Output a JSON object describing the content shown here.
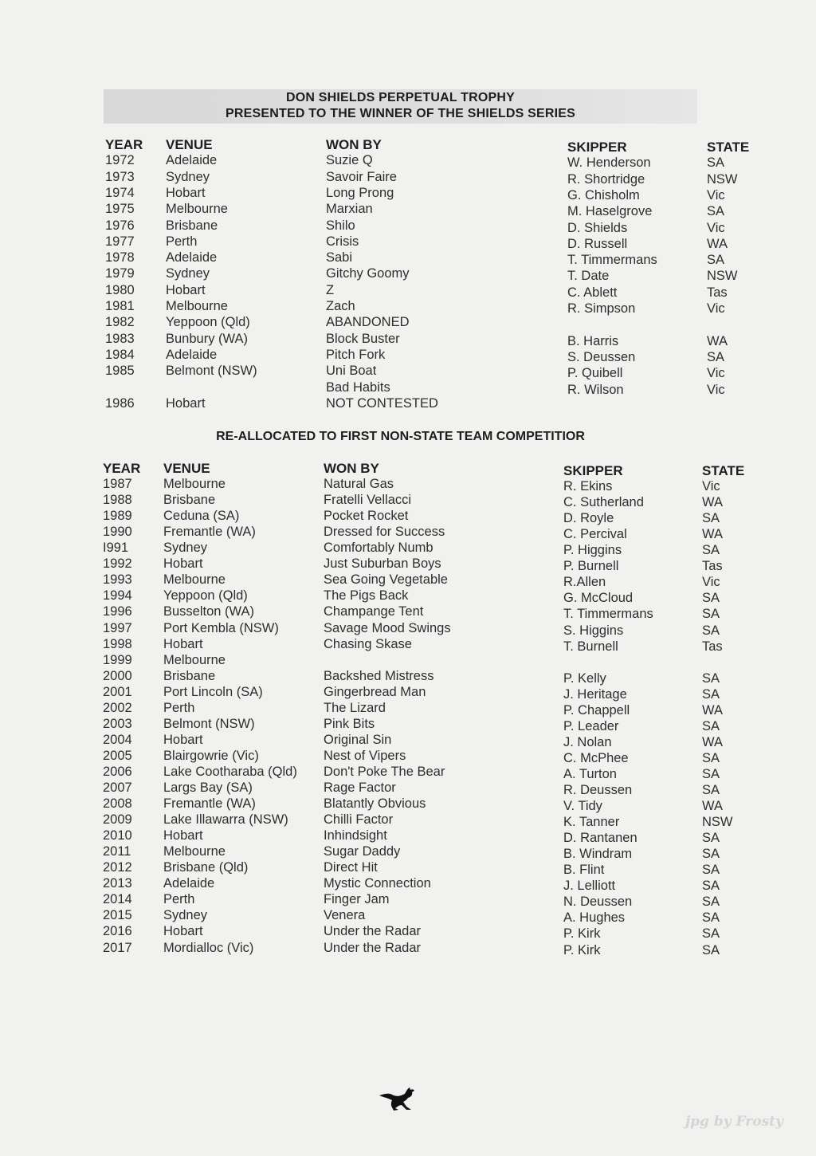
{
  "title_line1": "DON SHIELDS PERPETUAL TROPHY",
  "title_line2": "PRESENTED TO THE WINNER OF THE SHIELDS SERIES",
  "section2_title": "RE-ALLOCATED TO FIRST NON-STATE TEAM COMPETITIOR",
  "columns": [
    "YEAR",
    "VENUE",
    "WON BY",
    "SKIPPER",
    "STATE"
  ],
  "table1": [
    [
      "1972",
      "Adelaide",
      "Suzie Q",
      "W. Henderson",
      "SA"
    ],
    [
      "1973",
      "Sydney",
      "Savoir Faire",
      "R. Shortridge",
      "NSW"
    ],
    [
      "1974",
      "Hobart",
      "Long Prong",
      "G. Chisholm",
      "Vic"
    ],
    [
      "1975",
      "Melbourne",
      "Marxian",
      "M. Haselgrove",
      "SA"
    ],
    [
      "1976",
      "Brisbane",
      "Shilo",
      "D. Shields",
      "Vic"
    ],
    [
      "1977",
      "Perth",
      "Crisis",
      "D. Russell",
      "WA"
    ],
    [
      "1978",
      "Adelaide",
      "Sabi",
      "T. Timmermans",
      "SA"
    ],
    [
      "1979",
      "Sydney",
      "Gitchy Goomy",
      "T. Date",
      "NSW"
    ],
    [
      "1980",
      "Hobart",
      "Z",
      "C. Ablett",
      "Tas"
    ],
    [
      "1981",
      "Melbourne",
      "Zach",
      "R. Simpson",
      "Vic"
    ],
    [
      "1982",
      "Yeppoon (Qld)",
      "ABANDONED",
      "",
      ""
    ],
    [
      "1983",
      "Bunbury (WA)",
      "Block Buster",
      "B. Harris",
      "WA"
    ],
    [
      "1984",
      "Adelaide",
      "Pitch Fork",
      "S. Deussen",
      "SA"
    ],
    [
      "1985",
      "Belmont (NSW)",
      "Uni Boat",
      "P. Quibell",
      "Vic"
    ],
    [
      "",
      "",
      "Bad Habits",
      "R. Wilson",
      "Vic"
    ],
    [
      "1986",
      "Hobart",
      "NOT CONTESTED",
      "",
      ""
    ]
  ],
  "table2": [
    [
      "1987",
      "Melbourne",
      "Natural Gas",
      "R. Ekins",
      "Vic"
    ],
    [
      "1988",
      "Brisbane",
      "Fratelli Vellacci",
      "C. Sutherland",
      "WA"
    ],
    [
      "1989",
      "Ceduna (SA)",
      "Pocket Rocket",
      "D. Royle",
      "SA"
    ],
    [
      "1990",
      "Fremantle (WA)",
      "Dressed for Success",
      "C. Percival",
      "WA"
    ],
    [
      "I991",
      "Sydney",
      "Comfortably Numb",
      "P. Higgins",
      "SA"
    ],
    [
      "1992",
      "Hobart",
      "Just Suburban Boys",
      "P. Burnell",
      "Tas"
    ],
    [
      "1993",
      "Melbourne",
      "Sea Going Vegetable",
      "R.Allen",
      "Vic"
    ],
    [
      "1994",
      "Yeppoon (Qld)",
      "The Pigs Back",
      "G. McCloud",
      "SA"
    ],
    [
      "1996",
      "Busselton (WA)",
      "Champange Tent",
      "T. Timmermans",
      "SA"
    ],
    [
      "1997",
      "Port Kembla (NSW)",
      "Savage Mood Swings",
      "S. Higgins",
      "SA"
    ],
    [
      "1998",
      "Hobart",
      "Chasing Skase",
      "T. Burnell",
      "Tas"
    ],
    [
      "1999",
      "Melbourne",
      "",
      "",
      ""
    ],
    [
      "2000",
      "Brisbane",
      "Backshed Mistress",
      "P. Kelly",
      "SA"
    ],
    [
      "2001",
      "Port Lincoln (SA)",
      "Gingerbread Man",
      "J. Heritage",
      "SA"
    ],
    [
      "2002",
      "Perth",
      "The Lizard",
      "P. Chappell",
      "WA"
    ],
    [
      "2003",
      "Belmont (NSW)",
      "Pink Bits",
      "P. Leader",
      "SA"
    ],
    [
      "2004",
      "Hobart",
      "Original Sin",
      "J. Nolan",
      "WA"
    ],
    [
      "2005",
      "Blairgowrie (Vic)",
      "Nest of Vipers",
      "C. McPhee",
      "SA"
    ],
    [
      "2006",
      "Lake Cootharaba (Qld)",
      "Don't Poke The Bear",
      "A. Turton",
      "SA"
    ],
    [
      "2007",
      "Largs Bay (SA)",
      "Rage Factor",
      "R. Deussen",
      "SA"
    ],
    [
      "2008",
      "Fremantle (WA)",
      "Blatantly Obvious",
      "V. Tidy",
      "WA"
    ],
    [
      "2009",
      "Lake Illawarra (NSW)",
      "Chilli Factor",
      "K. Tanner",
      "NSW"
    ],
    [
      "2010",
      "Hobart",
      "Inhindsight",
      "D. Rantanen",
      "SA"
    ],
    [
      "2011",
      "Melbourne",
      "Sugar Daddy",
      "B. Windram",
      "SA"
    ],
    [
      "2012",
      "Brisbane (Qld)",
      "Direct Hit",
      "B. Flint",
      "SA"
    ],
    [
      "2013",
      "Adelaide",
      "Mystic Connection",
      "J. Lelliott",
      "SA"
    ],
    [
      "2014",
      "Perth",
      "Finger Jam",
      "N. Deussen",
      "SA"
    ],
    [
      "2015",
      "Sydney",
      "Venera",
      "A. Hughes",
      "SA"
    ],
    [
      "2016",
      "Hobart",
      "Under the Radar",
      "P. Kirk",
      "SA"
    ],
    [
      "2017",
      "Mordialloc (Vic)",
      "Under the Radar",
      "P. Kirk",
      "SA"
    ]
  ],
  "logo_icon": "kangaroo-icon",
  "watermark": "jpg by Frosty"
}
